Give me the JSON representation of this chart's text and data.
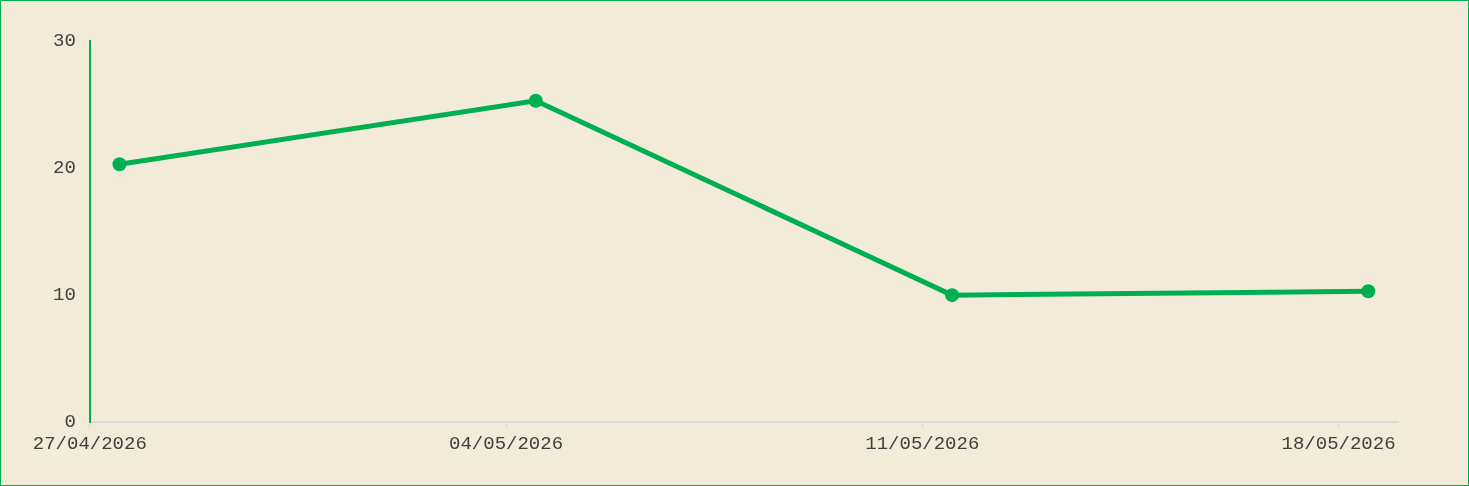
{
  "chart_data": {
    "type": "line",
    "x": [
      "2026-04-27T12:00",
      "2026-05-04T12:00",
      "2026-05-11T12:00",
      "2026-05-18T12:00"
    ],
    "series": [
      {
        "color": "#00b050",
        "values": [
          20.3,
          25.3,
          10.0,
          10.3
        ]
      }
    ],
    "xlim": [
      "2026-04-27",
      "2026-05-19"
    ],
    "xticks": [
      {
        "value": "2026-04-27",
        "label": "27/04/2026"
      },
      {
        "value": "2026-05-04",
        "label": "04/05/2026"
      },
      {
        "value": "2026-05-11",
        "label": "11/05/2026"
      },
      {
        "value": "2026-05-18",
        "label": "18/05/2026"
      }
    ],
    "ylim": [
      0,
      30
    ],
    "yticks": [
      0,
      10,
      20,
      30
    ],
    "grid": false,
    "legend": false,
    "marker": "circle",
    "line_style": "solid"
  }
}
